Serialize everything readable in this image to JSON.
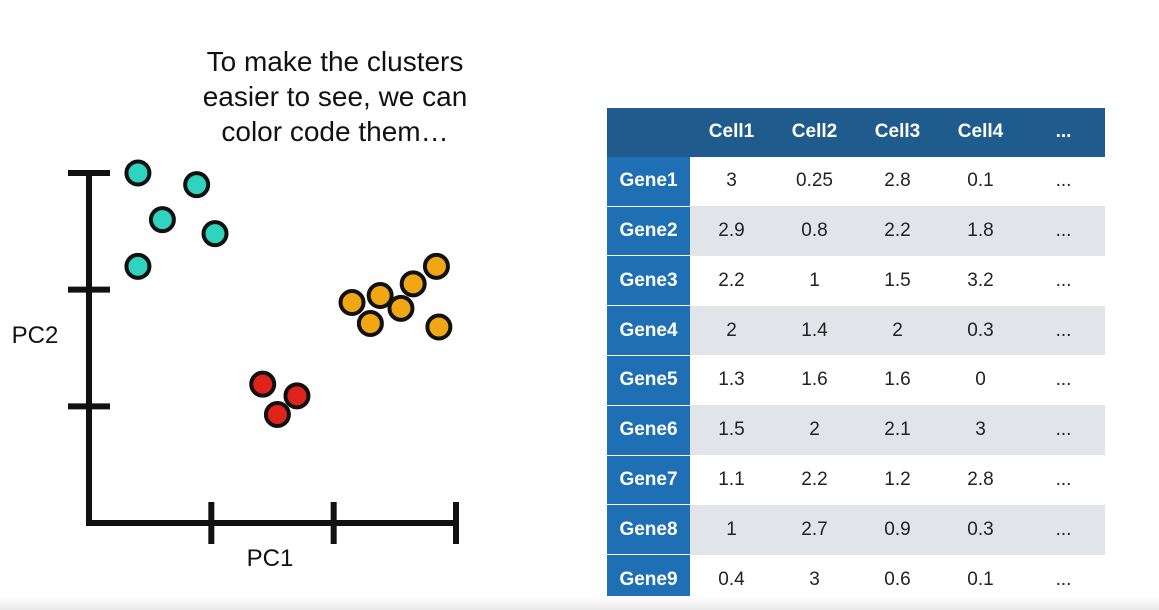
{
  "caption": {
    "line1": "To make the clusters",
    "line2": "easier to see, we can",
    "line3": "color code them…"
  },
  "chart_data": {
    "type": "scatter",
    "xlabel": "PC1",
    "ylabel": "PC2",
    "xlim": [
      0,
      3
    ],
    "ylim": [
      0,
      3
    ],
    "x_ticks": [
      1,
      2,
      3
    ],
    "y_ticks": [
      1,
      2,
      3
    ],
    "grid": false,
    "series": [
      {
        "color": "#2fd3be",
        "points": [
          [
            0.4,
            3.0
          ],
          [
            0.88,
            2.9
          ],
          [
            0.6,
            2.6
          ],
          [
            1.03,
            2.48
          ],
          [
            0.4,
            2.2
          ]
        ]
      },
      {
        "color": "#f1a714",
        "points": [
          [
            2.38,
            1.95
          ],
          [
            2.65,
            2.05
          ],
          [
            2.15,
            1.89
          ],
          [
            2.55,
            1.84
          ],
          [
            2.84,
            2.2
          ],
          [
            2.3,
            1.71
          ],
          [
            2.86,
            1.68
          ]
        ]
      },
      {
        "color": "#e0231a",
        "points": [
          [
            1.42,
            1.19
          ],
          [
            1.7,
            1.09
          ],
          [
            1.54,
            0.93
          ]
        ]
      }
    ]
  },
  "table": {
    "columns": [
      "Cell1",
      "Cell2",
      "Cell3",
      "Cell4",
      "..."
    ],
    "rows": [
      {
        "gene": "Gene1",
        "values": [
          "3",
          "0.25",
          "2.8",
          "0.1",
          "..."
        ]
      },
      {
        "gene": "Gene2",
        "values": [
          "2.9",
          "0.8",
          "2.2",
          "1.8",
          "..."
        ]
      },
      {
        "gene": "Gene3",
        "values": [
          "2.2",
          "1",
          "1.5",
          "3.2",
          "..."
        ]
      },
      {
        "gene": "Gene4",
        "values": [
          "2",
          "1.4",
          "2",
          "0.3",
          "..."
        ]
      },
      {
        "gene": "Gene5",
        "values": [
          "1.3",
          "1.6",
          "1.6",
          "0",
          "..."
        ]
      },
      {
        "gene": "Gene6",
        "values": [
          "1.5",
          "2",
          "2.1",
          "3",
          "..."
        ]
      },
      {
        "gene": "Gene7",
        "values": [
          "1.1",
          "2.2",
          "1.2",
          "2.8",
          "..."
        ]
      },
      {
        "gene": "Gene8",
        "values": [
          "1",
          "2.7",
          "0.9",
          "0.3",
          "..."
        ]
      },
      {
        "gene": "Gene9",
        "values": [
          "0.4",
          "3",
          "0.6",
          "0.1",
          "..."
        ]
      }
    ]
  }
}
